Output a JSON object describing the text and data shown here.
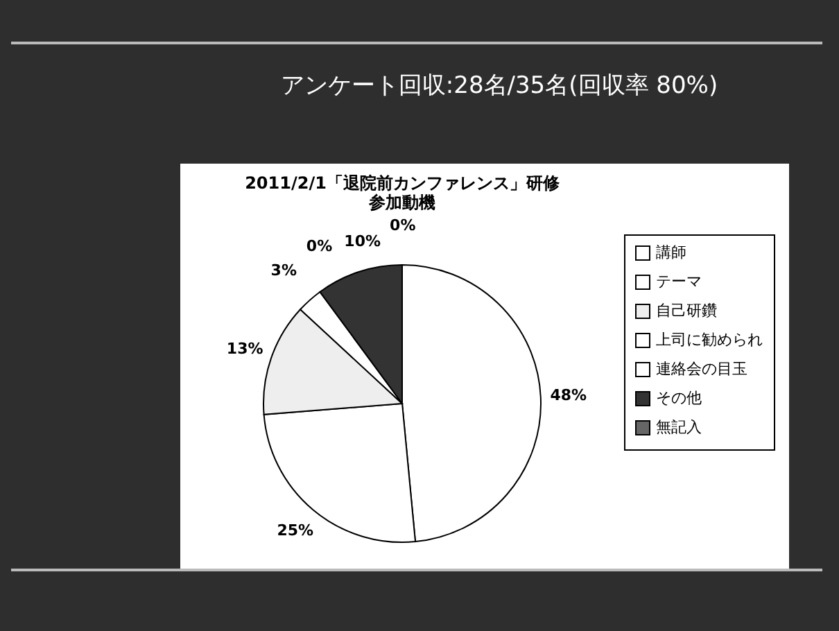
{
  "chart_data": {
    "type": "pie",
    "title": "アンケート回収:28名/35名(回収率 80%)",
    "subtitle": [
      "2011/2/1「退院前カンファレンス」研修",
      "参加動機"
    ],
    "categories": [
      "講師",
      "テーマ",
      "自己研鑽",
      "上司に勧められ",
      "連絡会の目玉",
      "その他",
      "無記入"
    ],
    "values": [
      48,
      25,
      13,
      3,
      0,
      10,
      0
    ],
    "value_labels": [
      "48%",
      "25%",
      "13%",
      "3%",
      "0%",
      "10%",
      "0%"
    ],
    "colors": [
      "#ffffff",
      "#ffffff",
      "#eeeeee",
      "#ffffff",
      "#ffffff",
      "#333333",
      "#666666"
    ],
    "legend": "right"
  }
}
